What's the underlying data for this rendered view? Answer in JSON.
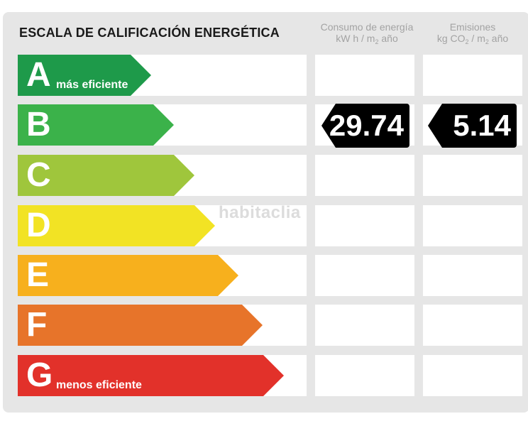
{
  "title": "ESCALA DE CALIFICACIÓN ENERGÉTICA",
  "columns": {
    "consumo": {
      "line1": "Consumo de energía",
      "line2_pre": "kW h / m",
      "line2_sub": "2",
      "line2_post": " año"
    },
    "emisiones": {
      "line1": "Emisiones",
      "line2_pre": "kg CO",
      "line2_sub1": "2",
      "line2_mid": " / m",
      "line2_sub2": "2",
      "line2_post": " año"
    }
  },
  "ratings": [
    {
      "letter": "A",
      "caption": "más eficiente",
      "color": "#1e9a4a"
    },
    {
      "letter": "B",
      "caption": "",
      "color": "#3bb24a"
    },
    {
      "letter": "C",
      "caption": "",
      "color": "#9fc63c"
    },
    {
      "letter": "D",
      "caption": "",
      "color": "#f2e324"
    },
    {
      "letter": "E",
      "caption": "",
      "color": "#f7b01d"
    },
    {
      "letter": "F",
      "caption": "",
      "color": "#e7742a"
    },
    {
      "letter": "G",
      "caption": "menos eficiente",
      "color": "#e2312a"
    }
  ],
  "current_rating": "B",
  "consumo_value": "29.74",
  "emisiones_value": "5.14",
  "watermark": "habitaclia"
}
